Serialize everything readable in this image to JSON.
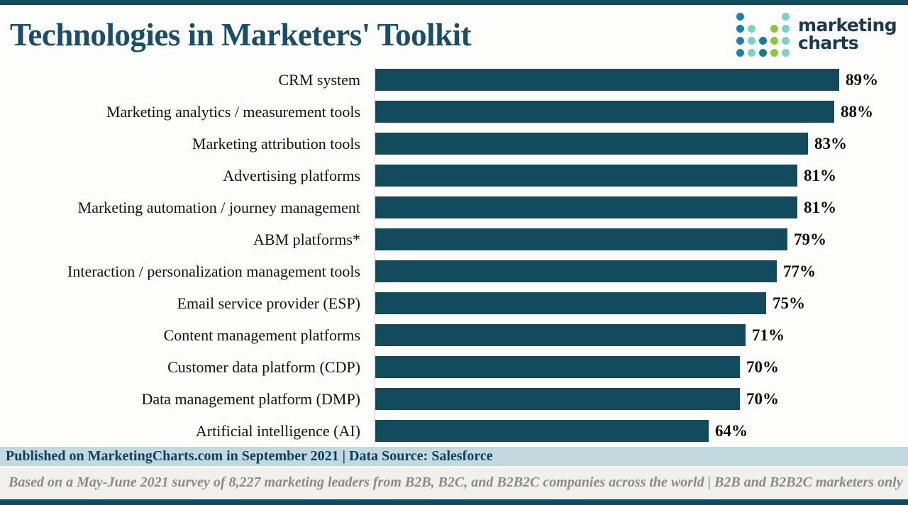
{
  "header": {
    "title": "Technologies in Marketers' Toolkit",
    "logo": {
      "line1": "marketing",
      "line2": "charts",
      "palette": {
        "blue": "#1a80ad",
        "light_teal": "#7bd0c9",
        "teal": "#0e7f90",
        "green": "#8cc63e"
      },
      "grid": [
        [
          "blue",
          "",
          "",
          "",
          "light_teal"
        ],
        [
          "blue",
          "light_teal",
          "",
          "green",
          "light_teal"
        ],
        [
          "blue",
          "light_teal",
          "teal",
          "green",
          "light_teal"
        ],
        [
          "blue",
          "light_teal",
          "teal",
          "green",
          "light_teal"
        ]
      ]
    }
  },
  "chart_data": {
    "type": "bar",
    "orientation": "horizontal",
    "title": "Technologies in Marketers' Toolkit",
    "categories": [
      "CRM system",
      "Marketing analytics / measurement tools",
      "Marketing attribution tools",
      "Advertising platforms",
      "Marketing automation / journey management",
      "ABM platforms*",
      "Interaction / personalization management tools",
      "Email service provider (ESP)",
      "Content management platforms",
      "Customer data platform (CDP)",
      "Data management platform (DMP)",
      "Artificial intelligence (AI)"
    ],
    "values": [
      89,
      88,
      83,
      81,
      81,
      79,
      77,
      75,
      71,
      70,
      70,
      64
    ],
    "value_suffix": "%",
    "xlabel": "",
    "ylabel": "",
    "xlim": [
      0,
      100
    ],
    "bar_color": "#134b5e",
    "value_labels": "end-of-bar",
    "grid": false,
    "legend": false
  },
  "footer": {
    "published_line": "Published on MarketingCharts.com in September 2021 | Data Source: Salesforce",
    "note_line": "Based on a May-June 2021 survey of 8,227 marketing leaders from B2B, B2C, and B2B2C companies across the world | B2B and B2B2C marketers only"
  },
  "colors": {
    "accent_dark_teal": "#134b5e",
    "title_text": "#174f6a",
    "published_band_bg": "#c3d9e0",
    "published_text": "#0f4156",
    "note_band_bg": "#f1f0ed",
    "note_text": "#8a8a8a",
    "page_bg": "#fdfdfb"
  }
}
